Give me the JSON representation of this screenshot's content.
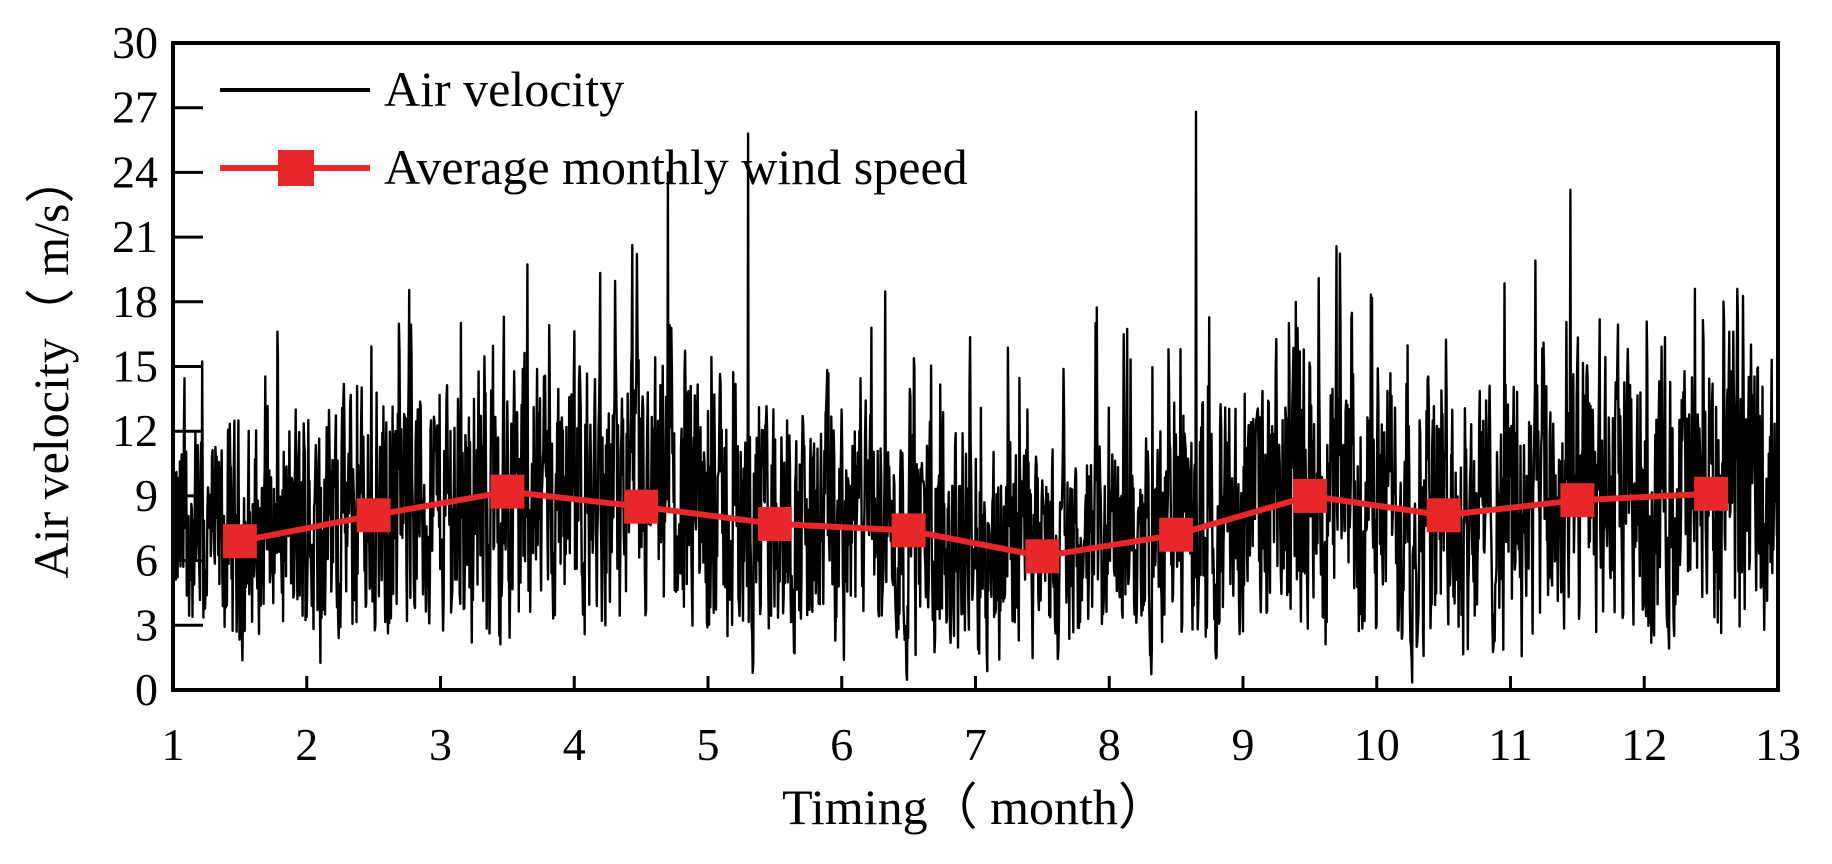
{
  "chart_data": {
    "type": "line",
    "title": "",
    "xlabel": "Timing（ month）",
    "ylabel": "Air velocity（ m/s）",
    "xlim": [
      1,
      13
    ],
    "ylim": [
      0,
      30
    ],
    "xticks": [
      1,
      2,
      3,
      4,
      5,
      6,
      7,
      8,
      9,
      10,
      11,
      12,
      13
    ],
    "yticks": [
      0,
      3,
      6,
      9,
      12,
      15,
      18,
      21,
      24,
      27,
      30
    ],
    "grid": false,
    "legend_position": "top-left",
    "series": [
      {
        "name": "Air velocity",
        "style": "line",
        "color": "#000000",
        "description_range": [
          0,
          26.8
        ],
        "peaks": [
          {
            "x": 4.7,
            "y": 24.0
          },
          {
            "x": 5.3,
            "y": 25.8
          },
          {
            "x": 8.65,
            "y": 26.8
          },
          {
            "x": 11.45,
            "y": 23.2
          }
        ]
      },
      {
        "name": "Average monthly wind speed",
        "style": "line-square-markers",
        "color": "#e8272a",
        "x": [
          1.5,
          2.5,
          3.5,
          4.5,
          5.5,
          6.5,
          7.5,
          8.5,
          9.5,
          10.5,
          11.5,
          12.5
        ],
        "values": [
          6.9,
          8.1,
          9.2,
          8.5,
          7.7,
          7.4,
          6.2,
          7.2,
          9.0,
          8.1,
          8.8,
          9.1
        ]
      }
    ]
  }
}
